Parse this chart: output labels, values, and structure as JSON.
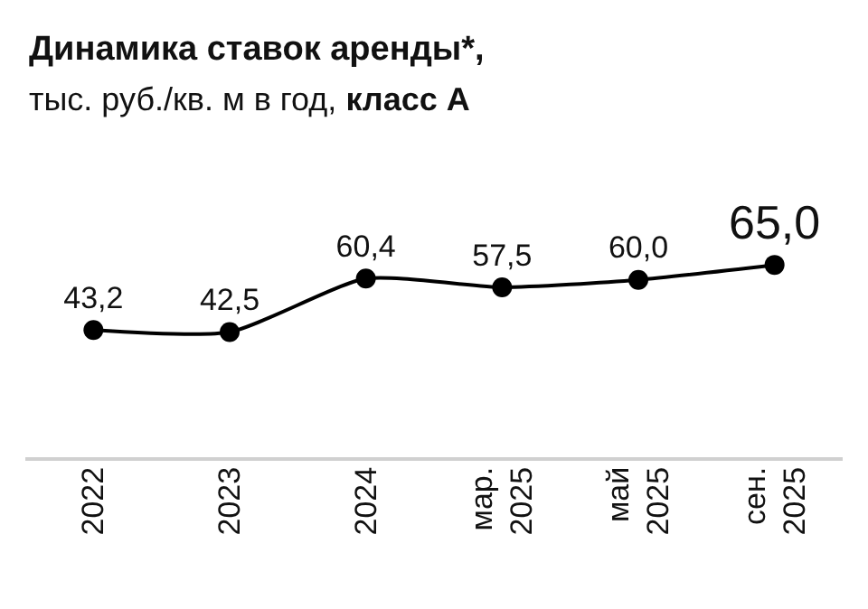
{
  "chart_data": {
    "type": "line",
    "title": "Динамика ставок аренды*,",
    "subtitle": "тыс. руб./кв. м в год, класс А",
    "categories": [
      "2022",
      "2023",
      "2024",
      "мар. 2025",
      "май 2025",
      "сен. 2025"
    ],
    "series": [
      {
        "color": "#000000",
        "values": [
          43.2,
          42.5,
          60.4,
          57.5,
          60.0,
          65.0
        ],
        "value_labels": [
          "43,2",
          "42,5",
          "60,4",
          "57,5",
          "60,0",
          "65,0"
        ]
      }
    ],
    "marker": "circle",
    "line_style": "solid"
  }
}
